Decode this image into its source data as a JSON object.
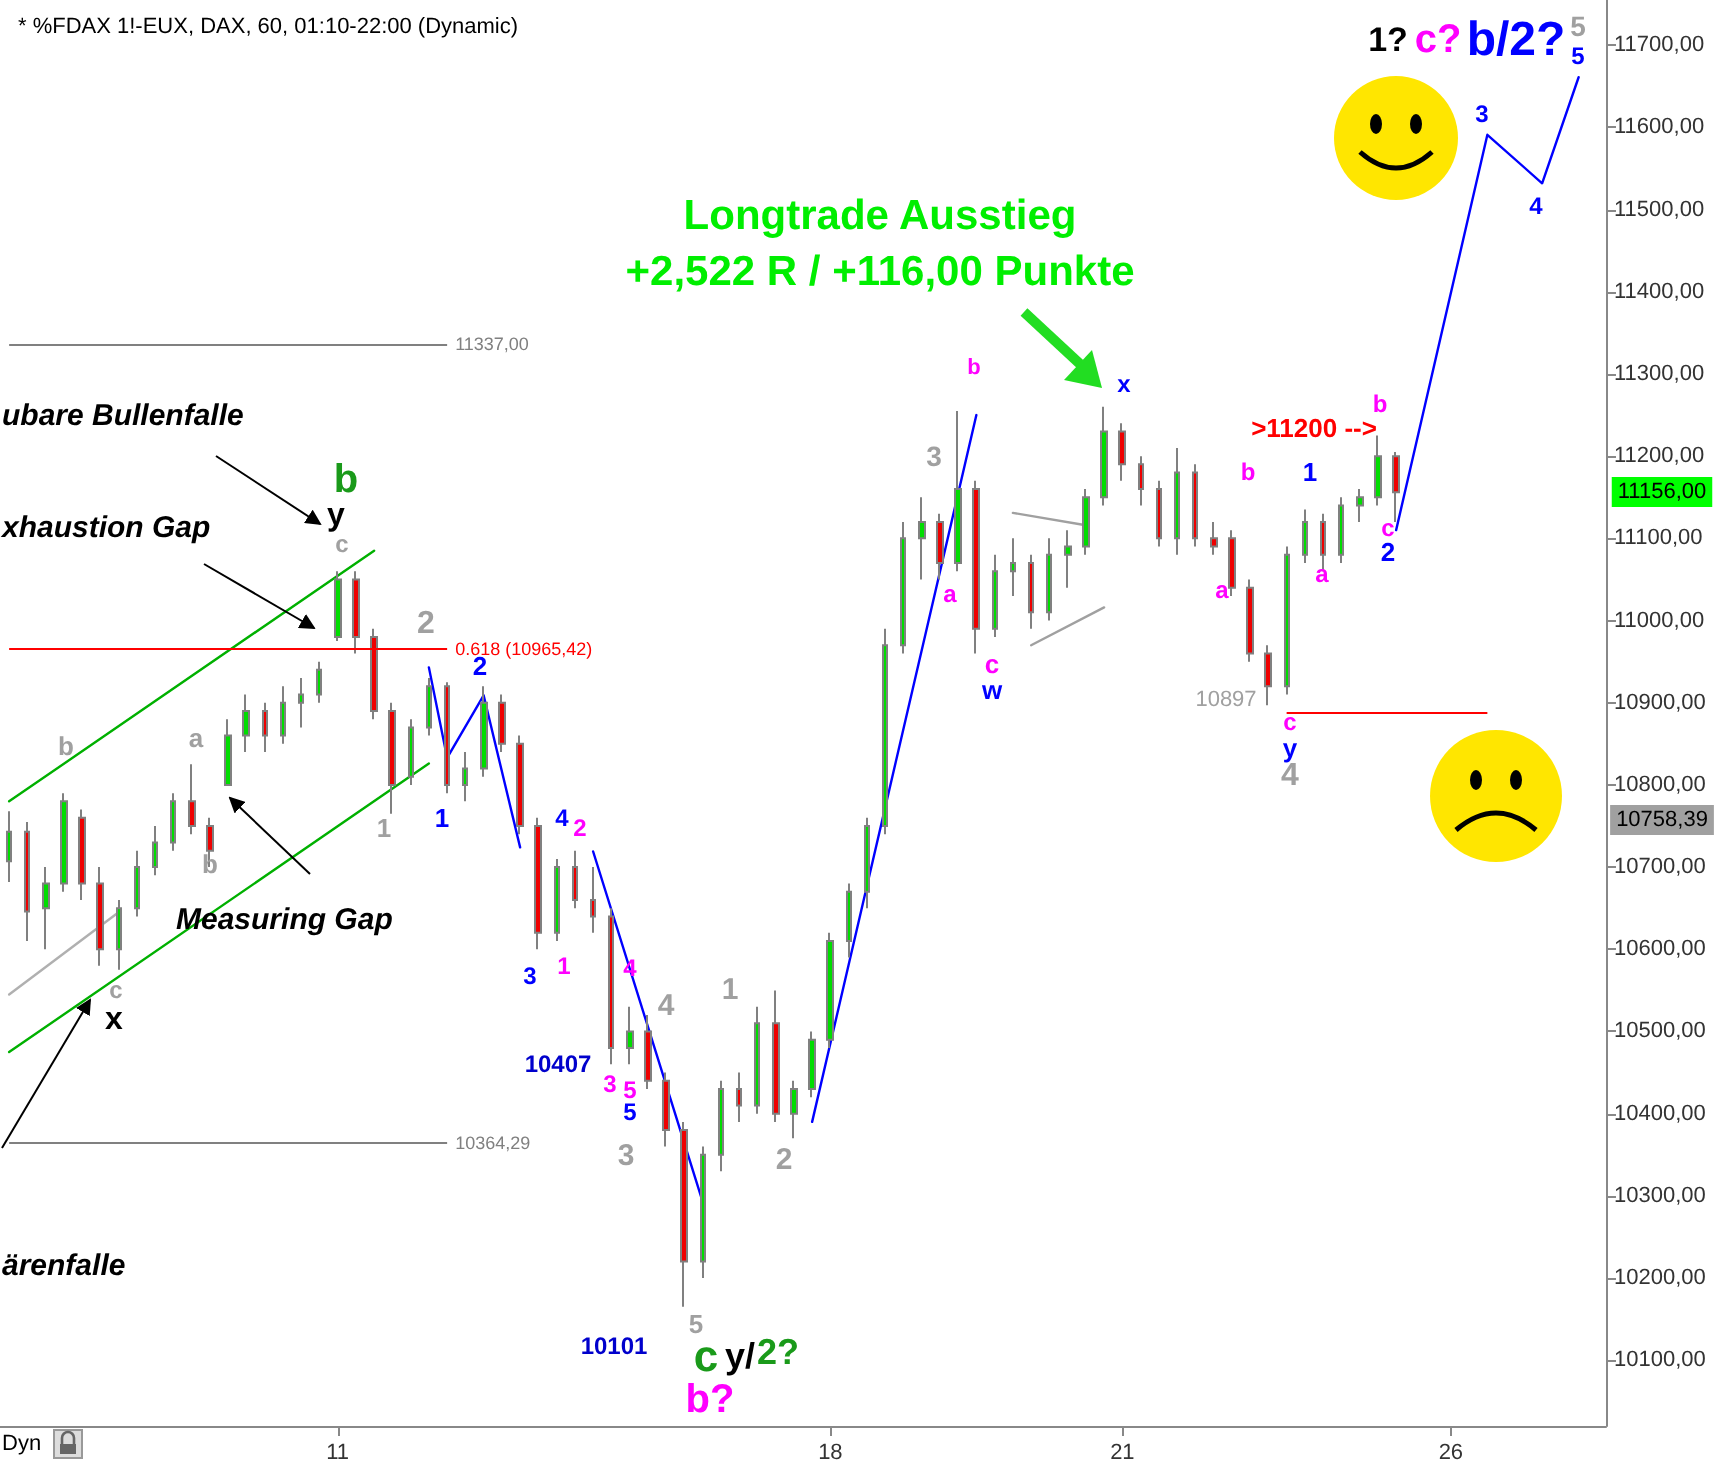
{
  "chart_data": {
    "type": "candlestick",
    "title": "* %FDAX 1!-EUX, DAX, 60, 01:10-22:00 (Dynamic)",
    "color": "#808080",
    "marker": "none",
    "line_style": "solid",
    "categories": [
      null,
      null,
      null,
      null,
      null,
      null,
      null,
      null,
      null,
      null,
      null,
      null,
      null,
      null,
      null,
      null,
      null,
      null,
      "11",
      null,
      null,
      null,
      null,
      null,
      null,
      null,
      null,
      null,
      null,
      null,
      null,
      null,
      null,
      null,
      null,
      null,
      null,
      null,
      null,
      null,
      null,
      null,
      null,
      null,
      null,
      "18",
      null,
      null,
      null,
      null,
      null,
      null,
      null,
      null,
      null,
      null,
      null,
      null,
      null,
      null,
      null,
      "21",
      null,
      null,
      null,
      null,
      null,
      null,
      null,
      null,
      null,
      null,
      null,
      null,
      null,
      null,
      null,
      null,
      null,
      "26",
      null,
      null,
      null,
      null,
      null,
      null,
      null,
      null
    ],
    "ylim": [
      10020,
      11755
    ],
    "yticks": [
      {
        "value": 10100,
        "label": "10100,00"
      },
      {
        "value": 10200,
        "label": "10200,00"
      },
      {
        "value": 10300,
        "label": "10300,00"
      },
      {
        "value": 10400,
        "label": "10400,00"
      },
      {
        "value": 10500,
        "label": "10500,00"
      },
      {
        "value": 10600,
        "label": "10600,00"
      },
      {
        "value": 10700,
        "label": "10700,00"
      },
      {
        "value": 10800,
        "label": "10800,00"
      },
      {
        "value": 10900,
        "label": "10900,00"
      },
      {
        "value": 11000,
        "label": "11000,00"
      },
      {
        "value": 11100,
        "label": "11100,00"
      },
      {
        "value": 11200,
        "label": "11200,00"
      },
      {
        "value": 11300,
        "label": "11300,00"
      },
      {
        "value": 11400,
        "label": "11400,00"
      },
      {
        "value": 11500,
        "label": "11500,00"
      },
      {
        "value": 11600,
        "label": "11600,00"
      },
      {
        "value": 11700,
        "label": "11700,00"
      }
    ],
    "ohlc": [
      [
        10707,
        10768,
        10682,
        10743
      ],
      [
        10743,
        10755,
        10610,
        10646
      ],
      [
        10650,
        10700,
        10600,
        10680
      ],
      [
        10680,
        10790,
        10670,
        10780
      ],
      [
        10760,
        10770,
        10660,
        10680
      ],
      [
        10680,
        10700,
        10580,
        10600
      ],
      [
        10600,
        10660,
        10575,
        10650
      ],
      [
        10650,
        10720,
        10640,
        10700
      ],
      [
        10700,
        10750,
        10690,
        10730
      ],
      [
        10730,
        10790,
        10720,
        10780
      ],
      [
        10780,
        10825,
        10740,
        10750
      ],
      [
        10750,
        10760,
        10700,
        10720
      ],
      [
        10800,
        10880,
        10800,
        10860
      ],
      [
        10860,
        10910,
        10840,
        10890
      ],
      [
        10890,
        10900,
        10840,
        10860
      ],
      [
        10860,
        10920,
        10850,
        10900
      ],
      [
        10900,
        10930,
        10870,
        10910
      ],
      [
        10910,
        10950,
        10900,
        10940
      ],
      [
        10980,
        11060,
        10975,
        11050
      ],
      [
        11050,
        11060,
        10960,
        10980
      ],
      [
        10980,
        10990,
        10880,
        10890
      ],
      [
        10890,
        10900,
        10765,
        10800
      ],
      [
        10810,
        10880,
        10800,
        10870
      ],
      [
        10870,
        10930,
        10860,
        10920
      ],
      [
        10920,
        10925,
        10790,
        10800
      ],
      [
        10800,
        10840,
        10780,
        10820
      ],
      [
        10820,
        10920,
        10810,
        10900
      ],
      [
        10900,
        10910,
        10840,
        10850
      ],
      [
        10850,
        10860,
        10740,
        10750
      ],
      [
        10750,
        10760,
        10600,
        10620
      ],
      [
        10620,
        10710,
        10610,
        10700
      ],
      [
        10700,
        10720,
        10650,
        10660
      ],
      [
        10660,
        10700,
        10620,
        10640
      ],
      [
        10640,
        10650,
        10460,
        10480
      ],
      [
        10480,
        10530,
        10460,
        10500
      ],
      [
        10500,
        10520,
        10430,
        10440
      ],
      [
        10440,
        10450,
        10360,
        10380
      ],
      [
        10380,
        10390,
        10165,
        10220
      ],
      [
        10220,
        10360,
        10200,
        10350
      ],
      [
        10350,
        10440,
        10330,
        10430
      ],
      [
        10430,
        10450,
        10390,
        10410
      ],
      [
        10410,
        10530,
        10400,
        10510
      ],
      [
        10510,
        10550,
        10390,
        10400
      ],
      [
        10400,
        10440,
        10370,
        10430
      ],
      [
        10430,
        10500,
        10420,
        10490
      ],
      [
        10490,
        10620,
        10480,
        10610
      ],
      [
        10610,
        10680,
        10590,
        10670
      ],
      [
        10670,
        10760,
        10650,
        10750
      ],
      [
        10750,
        10990,
        10740,
        10970
      ],
      [
        10970,
        11120,
        10960,
        11100
      ],
      [
        11100,
        11150,
        11050,
        11120
      ],
      [
        11120,
        11130,
        11050,
        11070
      ],
      [
        11070,
        11255,
        11060,
        11160
      ],
      [
        11160,
        11170,
        10960,
        10990
      ],
      [
        10990,
        11080,
        10980,
        11060
      ],
      [
        11060,
        11100,
        11030,
        11070
      ],
      [
        11070,
        11080,
        10990,
        11010
      ],
      [
        11010,
        11100,
        11000,
        11080
      ],
      [
        11080,
        11110,
        11040,
        11090
      ],
      [
        11090,
        11160,
        11080,
        11150
      ],
      [
        11150,
        11260,
        11140,
        11230
      ],
      [
        11230,
        11240,
        11170,
        11190
      ],
      [
        11190,
        11200,
        11140,
        11160
      ],
      [
        11160,
        11170,
        11090,
        11100
      ],
      [
        11100,
        11210,
        11080,
        11180
      ],
      [
        11180,
        11190,
        11090,
        11100
      ],
      [
        11100,
        11120,
        11080,
        11090
      ],
      [
        11100,
        11110,
        11030,
        11040
      ],
      [
        11040,
        11050,
        10950,
        10960
      ],
      [
        10960,
        10970,
        10897,
        10920
      ],
      [
        10920,
        11090,
        10910,
        11080
      ],
      [
        11080,
        11135,
        11070,
        11120
      ],
      [
        11120,
        11130,
        11060,
        11080
      ],
      [
        11080,
        11150,
        11070,
        11140
      ],
      [
        11140,
        11160,
        11120,
        11150
      ],
      [
        11150,
        11225,
        11140,
        11200
      ],
      [
        11200,
        11205,
        11120,
        11156
      ],
      null,
      null,
      null,
      null,
      null,
      null,
      null,
      null,
      null,
      null,
      null
    ],
    "series": [
      {
        "type": "line",
        "color": "#00b000",
        "values": [
          10780,
          null,
          null,
          null,
          null,
          null,
          null,
          null,
          null,
          null,
          null,
          null,
          null,
          null,
          null,
          null,
          null,
          null,
          null,
          null,
          11085,
          null,
          null,
          null,
          null,
          null,
          null,
          null,
          null,
          null,
          null,
          null,
          null,
          null,
          null,
          null,
          null,
          null,
          null,
          null,
          null,
          null,
          null,
          null,
          null,
          null,
          null,
          null,
          null,
          null,
          null,
          null,
          null,
          null,
          null,
          null,
          null,
          null,
          null,
          null,
          null,
          null,
          null,
          null,
          null,
          null,
          null,
          null,
          null,
          null,
          null,
          null,
          null,
          null,
          null,
          null,
          null,
          null,
          null,
          null,
          null,
          null,
          null,
          null,
          null,
          null,
          null,
          null
        ]
      },
      {
        "type": "line",
        "color": "#00b000",
        "values": [
          10475,
          null,
          null,
          null,
          null,
          null,
          null,
          null,
          null,
          null,
          null,
          null,
          null,
          null,
          null,
          null,
          null,
          null,
          null,
          null,
          null,
          null,
          null,
          10826,
          null,
          null,
          null,
          null,
          null,
          null,
          null,
          null,
          null,
          null,
          null,
          null,
          null,
          null,
          null,
          null,
          null,
          null,
          null,
          null,
          null,
          null,
          null,
          null,
          null,
          null,
          null,
          null,
          null,
          null,
          null,
          null,
          null,
          null,
          null,
          null,
          null,
          null,
          null,
          null,
          null,
          null,
          null,
          null,
          null,
          null,
          null,
          null,
          null,
          null,
          null,
          null,
          null,
          null,
          null,
          null,
          null,
          null,
          null,
          null,
          null,
          null,
          null,
          null
        ]
      },
      {
        "type": "line",
        "color": "#b0b0b0",
        "values": [
          10545,
          null,
          null,
          null,
          null,
          null,
          10645,
          null,
          null,
          null,
          null,
          null,
          null,
          null,
          null,
          null,
          null,
          null,
          null,
          null,
          null,
          null,
          null,
          null,
          null,
          null,
          null,
          null,
          null,
          null,
          null,
          null,
          null,
          null,
          null,
          null,
          null,
          null,
          null,
          null,
          null,
          null,
          null,
          null,
          null,
          null,
          null,
          null,
          null,
          null,
          null,
          null,
          null,
          null,
          null,
          null,
          null,
          null,
          null,
          null,
          null,
          null,
          null,
          null,
          null,
          null,
          null,
          null,
          null,
          null,
          null,
          null,
          null,
          null,
          null,
          null,
          null,
          null,
          null,
          null,
          null,
          null,
          null,
          null,
          null,
          null,
          null,
          null
        ]
      },
      {
        "type": "line",
        "color": "#a0a0a0",
        "values": [
          null,
          null,
          null,
          null,
          null,
          null,
          null,
          null,
          null,
          null,
          null,
          null,
          null,
          null,
          null,
          null,
          null,
          null,
          null,
          null,
          null,
          null,
          null,
          null,
          null,
          null,
          null,
          null,
          null,
          null,
          null,
          null,
          null,
          null,
          null,
          null,
          null,
          null,
          null,
          null,
          null,
          null,
          null,
          null,
          null,
          null,
          null,
          null,
          null,
          null,
          null,
          null,
          null,
          null,
          null,
          11131,
          null,
          null,
          null,
          11116,
          null,
          null,
          null,
          null,
          null,
          null,
          null,
          null,
          null,
          null,
          null,
          null,
          null,
          null,
          null,
          null,
          null,
          null,
          null,
          null,
          null,
          null,
          null,
          null,
          null,
          null,
          null,
          null
        ]
      },
      {
        "type": "line",
        "color": "#a0a0a0",
        "values": [
          null,
          null,
          null,
          null,
          null,
          null,
          null,
          null,
          null,
          null,
          null,
          null,
          null,
          null,
          null,
          null,
          null,
          null,
          null,
          null,
          null,
          null,
          null,
          null,
          null,
          null,
          null,
          null,
          null,
          null,
          null,
          null,
          null,
          null,
          null,
          null,
          null,
          null,
          null,
          null,
          null,
          null,
          null,
          null,
          null,
          null,
          null,
          null,
          null,
          null,
          null,
          null,
          null,
          null,
          null,
          null,
          10970,
          null,
          null,
          null,
          11016,
          null,
          null,
          null,
          null,
          null,
          null,
          null,
          null,
          null,
          null,
          null,
          null,
          null,
          null,
          null,
          null,
          null,
          null,
          null,
          null,
          null,
          null,
          null,
          null,
          null,
          null,
          null
        ]
      },
      {
        "type": "line",
        "color": "#0000ff",
        "values": [
          null,
          null,
          null,
          null,
          null,
          null,
          null,
          null,
          null,
          null,
          null,
          null,
          null,
          null,
          null,
          null,
          null,
          null,
          null,
          null,
          null,
          null,
          null,
          10943,
          10833,
          null,
          10909,
          null,
          10724,
          null,
          null,
          null,
          null,
          null,
          null,
          null,
          null,
          null,
          null,
          null,
          null,
          null,
          null,
          null,
          null,
          null,
          null,
          null,
          null,
          null,
          null,
          null,
          null,
          null,
          null,
          null,
          null,
          null,
          null,
          null,
          null,
          null,
          null,
          null,
          null,
          null,
          null,
          null,
          null,
          null,
          null,
          null,
          null,
          null,
          null,
          null,
          null,
          null,
          null,
          null,
          null,
          null,
          null,
          null,
          null,
          null,
          null,
          null
        ]
      },
      {
        "type": "line",
        "color": "#0000ff",
        "values": [
          null,
          null,
          null,
          null,
          null,
          null,
          null,
          null,
          null,
          null,
          null,
          null,
          null,
          null,
          null,
          null,
          null,
          null,
          null,
          null,
          null,
          null,
          null,
          null,
          null,
          null,
          null,
          null,
          null,
          null,
          null,
          null,
          10719,
          null,
          null,
          null,
          null,
          null,
          10293,
          null,
          null,
          null,
          null,
          null,
          null,
          null,
          null,
          null,
          null,
          null,
          null,
          null,
          null,
          null,
          null,
          null,
          null,
          null,
          null,
          null,
          null,
          null,
          null,
          null,
          null,
          null,
          null,
          null,
          null,
          null,
          null,
          null,
          null,
          null,
          null,
          null,
          null,
          null,
          null,
          null,
          null,
          null,
          null,
          null,
          null,
          null,
          null,
          null
        ]
      },
      {
        "type": "line",
        "color": "#0000ff",
        "values": [
          null,
          null,
          null,
          null,
          null,
          null,
          null,
          null,
          null,
          null,
          null,
          null,
          null,
          null,
          null,
          null,
          null,
          null,
          null,
          null,
          null,
          null,
          null,
          null,
          null,
          null,
          null,
          null,
          null,
          null,
          null,
          null,
          null,
          null,
          null,
          null,
          null,
          null,
          null,
          null,
          null,
          null,
          null,
          null,
          10390,
          null,
          null,
          null,
          null,
          null,
          null,
          null,
          null,
          11250,
          null,
          null,
          null,
          null,
          null,
          null,
          null,
          null,
          null,
          null,
          null,
          null,
          null,
          null,
          null,
          null,
          null,
          null,
          null,
          null,
          null,
          null,
          null,
          null,
          null,
          null,
          null,
          null,
          null,
          null,
          null,
          null,
          null,
          null
        ]
      },
      {
        "type": "line",
        "color": "#0000ff",
        "values": [
          null,
          null,
          null,
          null,
          null,
          null,
          null,
          null,
          null,
          null,
          null,
          null,
          null,
          null,
          null,
          null,
          null,
          null,
          null,
          null,
          null,
          null,
          null,
          null,
          null,
          null,
          null,
          null,
          null,
          null,
          null,
          null,
          null,
          null,
          null,
          null,
          null,
          null,
          null,
          null,
          null,
          null,
          null,
          null,
          null,
          null,
          null,
          null,
          null,
          null,
          null,
          null,
          null,
          null,
          null,
          null,
          null,
          null,
          null,
          null,
          null,
          null,
          null,
          null,
          null,
          null,
          null,
          null,
          null,
          null,
          null,
          null,
          null,
          null,
          null,
          null,
          11110,
          null,
          null,
          null,
          null,
          11591,
          null,
          null,
          11532,
          null,
          11661,
          null
        ]
      }
    ],
    "ref_lines": [
      {
        "axis": "y",
        "value": 11337,
        "label": "11337,00",
        "color": "#808080"
      },
      {
        "axis": "y",
        "value": 10965.42,
        "label": "0.618 (10965,42)",
        "color": "#ff0000"
      },
      {
        "axis": "y",
        "value": 10364.29,
        "label": "10364,29",
        "color": "#808080"
      },
      {
        "axis": "y",
        "value": 10888,
        "color": "#ff0000"
      }
    ],
    "annotations": [
      "Longtrade Ausstieg",
      "+2,522 R / +116,00 Punkte",
      "ubare Bullenfalle",
      "xhaustion Gap",
      "Measuring Gap",
      "ärenfalle",
      "1?",
      "c?",
      "b/2?",
      "Dyn",
      "b",
      "y",
      "c",
      "2",
      "2",
      "1",
      "1",
      "a",
      "b",
      "b",
      "c",
      "x",
      "3",
      "4",
      "2",
      "1",
      "4",
      "3",
      "5",
      "5",
      "3",
      "4",
      "1",
      "2",
      "5",
      "c",
      "y/",
      "2?",
      "b?",
      "10407",
      "10101",
      "3",
      "b",
      "a",
      "c",
      "w",
      "x",
      "b",
      "a",
      "1",
      "a",
      "c",
      "y",
      "4",
      "10897",
      ">11200 -->",
      "b",
      "c",
      "2",
      "3",
      "4",
      "5",
      "5",
      "11156,00",
      "10758,39"
    ]
  }
}
